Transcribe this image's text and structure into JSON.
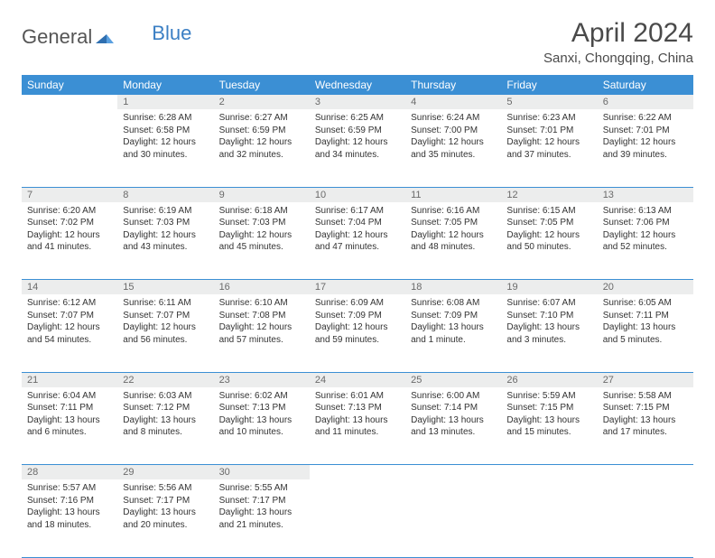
{
  "logo": {
    "part1": "General",
    "part2": "Blue"
  },
  "title": "April 2024",
  "location": "Sanxi, Chongqing, China",
  "colors": {
    "header_bg": "#3b8fd4",
    "header_text": "#ffffff",
    "daynum_bg": "#eceded",
    "daynum_text": "#6a6a6a",
    "body_text": "#333333",
    "rule": "#3b8fd4"
  },
  "weekdays": [
    "Sunday",
    "Monday",
    "Tuesday",
    "Wednesday",
    "Thursday",
    "Friday",
    "Saturday"
  ],
  "weeks": [
    {
      "nums": [
        "",
        "1",
        "2",
        "3",
        "4",
        "5",
        "6"
      ],
      "cells": [
        null,
        {
          "sunrise": "Sunrise: 6:28 AM",
          "sunset": "Sunset: 6:58 PM",
          "day1": "Daylight: 12 hours",
          "day2": "and 30 minutes."
        },
        {
          "sunrise": "Sunrise: 6:27 AM",
          "sunset": "Sunset: 6:59 PM",
          "day1": "Daylight: 12 hours",
          "day2": "and 32 minutes."
        },
        {
          "sunrise": "Sunrise: 6:25 AM",
          "sunset": "Sunset: 6:59 PM",
          "day1": "Daylight: 12 hours",
          "day2": "and 34 minutes."
        },
        {
          "sunrise": "Sunrise: 6:24 AM",
          "sunset": "Sunset: 7:00 PM",
          "day1": "Daylight: 12 hours",
          "day2": "and 35 minutes."
        },
        {
          "sunrise": "Sunrise: 6:23 AM",
          "sunset": "Sunset: 7:01 PM",
          "day1": "Daylight: 12 hours",
          "day2": "and 37 minutes."
        },
        {
          "sunrise": "Sunrise: 6:22 AM",
          "sunset": "Sunset: 7:01 PM",
          "day1": "Daylight: 12 hours",
          "day2": "and 39 minutes."
        }
      ]
    },
    {
      "nums": [
        "7",
        "8",
        "9",
        "10",
        "11",
        "12",
        "13"
      ],
      "cells": [
        {
          "sunrise": "Sunrise: 6:20 AM",
          "sunset": "Sunset: 7:02 PM",
          "day1": "Daylight: 12 hours",
          "day2": "and 41 minutes."
        },
        {
          "sunrise": "Sunrise: 6:19 AM",
          "sunset": "Sunset: 7:03 PM",
          "day1": "Daylight: 12 hours",
          "day2": "and 43 minutes."
        },
        {
          "sunrise": "Sunrise: 6:18 AM",
          "sunset": "Sunset: 7:03 PM",
          "day1": "Daylight: 12 hours",
          "day2": "and 45 minutes."
        },
        {
          "sunrise": "Sunrise: 6:17 AM",
          "sunset": "Sunset: 7:04 PM",
          "day1": "Daylight: 12 hours",
          "day2": "and 47 minutes."
        },
        {
          "sunrise": "Sunrise: 6:16 AM",
          "sunset": "Sunset: 7:05 PM",
          "day1": "Daylight: 12 hours",
          "day2": "and 48 minutes."
        },
        {
          "sunrise": "Sunrise: 6:15 AM",
          "sunset": "Sunset: 7:05 PM",
          "day1": "Daylight: 12 hours",
          "day2": "and 50 minutes."
        },
        {
          "sunrise": "Sunrise: 6:13 AM",
          "sunset": "Sunset: 7:06 PM",
          "day1": "Daylight: 12 hours",
          "day2": "and 52 minutes."
        }
      ]
    },
    {
      "nums": [
        "14",
        "15",
        "16",
        "17",
        "18",
        "19",
        "20"
      ],
      "cells": [
        {
          "sunrise": "Sunrise: 6:12 AM",
          "sunset": "Sunset: 7:07 PM",
          "day1": "Daylight: 12 hours",
          "day2": "and 54 minutes."
        },
        {
          "sunrise": "Sunrise: 6:11 AM",
          "sunset": "Sunset: 7:07 PM",
          "day1": "Daylight: 12 hours",
          "day2": "and 56 minutes."
        },
        {
          "sunrise": "Sunrise: 6:10 AM",
          "sunset": "Sunset: 7:08 PM",
          "day1": "Daylight: 12 hours",
          "day2": "and 57 minutes."
        },
        {
          "sunrise": "Sunrise: 6:09 AM",
          "sunset": "Sunset: 7:09 PM",
          "day1": "Daylight: 12 hours",
          "day2": "and 59 minutes."
        },
        {
          "sunrise": "Sunrise: 6:08 AM",
          "sunset": "Sunset: 7:09 PM",
          "day1": "Daylight: 13 hours",
          "day2": "and 1 minute."
        },
        {
          "sunrise": "Sunrise: 6:07 AM",
          "sunset": "Sunset: 7:10 PM",
          "day1": "Daylight: 13 hours",
          "day2": "and 3 minutes."
        },
        {
          "sunrise": "Sunrise: 6:05 AM",
          "sunset": "Sunset: 7:11 PM",
          "day1": "Daylight: 13 hours",
          "day2": "and 5 minutes."
        }
      ]
    },
    {
      "nums": [
        "21",
        "22",
        "23",
        "24",
        "25",
        "26",
        "27"
      ],
      "cells": [
        {
          "sunrise": "Sunrise: 6:04 AM",
          "sunset": "Sunset: 7:11 PM",
          "day1": "Daylight: 13 hours",
          "day2": "and 6 minutes."
        },
        {
          "sunrise": "Sunrise: 6:03 AM",
          "sunset": "Sunset: 7:12 PM",
          "day1": "Daylight: 13 hours",
          "day2": "and 8 minutes."
        },
        {
          "sunrise": "Sunrise: 6:02 AM",
          "sunset": "Sunset: 7:13 PM",
          "day1": "Daylight: 13 hours",
          "day2": "and 10 minutes."
        },
        {
          "sunrise": "Sunrise: 6:01 AM",
          "sunset": "Sunset: 7:13 PM",
          "day1": "Daylight: 13 hours",
          "day2": "and 11 minutes."
        },
        {
          "sunrise": "Sunrise: 6:00 AM",
          "sunset": "Sunset: 7:14 PM",
          "day1": "Daylight: 13 hours",
          "day2": "and 13 minutes."
        },
        {
          "sunrise": "Sunrise: 5:59 AM",
          "sunset": "Sunset: 7:15 PM",
          "day1": "Daylight: 13 hours",
          "day2": "and 15 minutes."
        },
        {
          "sunrise": "Sunrise: 5:58 AM",
          "sunset": "Sunset: 7:15 PM",
          "day1": "Daylight: 13 hours",
          "day2": "and 17 minutes."
        }
      ]
    },
    {
      "nums": [
        "28",
        "29",
        "30",
        "",
        "",
        "",
        ""
      ],
      "cells": [
        {
          "sunrise": "Sunrise: 5:57 AM",
          "sunset": "Sunset: 7:16 PM",
          "day1": "Daylight: 13 hours",
          "day2": "and 18 minutes."
        },
        {
          "sunrise": "Sunrise: 5:56 AM",
          "sunset": "Sunset: 7:17 PM",
          "day1": "Daylight: 13 hours",
          "day2": "and 20 minutes."
        },
        {
          "sunrise": "Sunrise: 5:55 AM",
          "sunset": "Sunset: 7:17 PM",
          "day1": "Daylight: 13 hours",
          "day2": "and 21 minutes."
        },
        null,
        null,
        null,
        null
      ]
    }
  ]
}
